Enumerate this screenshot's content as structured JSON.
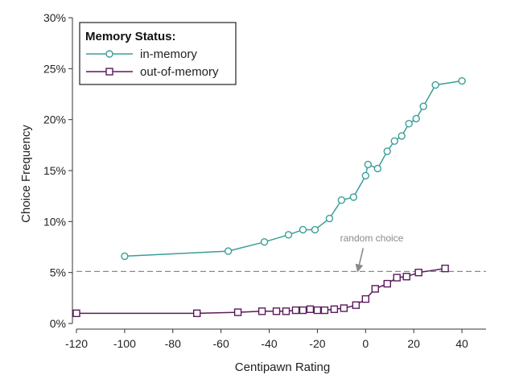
{
  "chart_data": {
    "type": "line",
    "title": "",
    "xlabel": "Centipawn Rating",
    "ylabel": "Choice Frequency",
    "xlim": [
      -120,
      50
    ],
    "ylim": [
      0,
      30
    ],
    "x_ticks": [
      -120,
      -100,
      -80,
      -60,
      -40,
      -20,
      0,
      20,
      40
    ],
    "x_tick_labels": [
      "-120",
      "-100",
      "-80",
      "-60",
      "-40",
      "-20",
      "0",
      "20",
      "40"
    ],
    "y_ticks": [
      0,
      5,
      10,
      15,
      20,
      25,
      30
    ],
    "y_tick_labels": [
      "0%",
      "5%",
      "10%",
      "15%",
      "20%",
      "25%",
      "30%"
    ],
    "grid": false,
    "legend": {
      "title": "Memory Status:",
      "placement": "top-left"
    },
    "series": [
      {
        "name": "in-memory",
        "color": "#3a9e98",
        "marker": "circle",
        "x": [
          -100,
          -57,
          -42,
          -32,
          -26,
          -21,
          -15,
          -10,
          -5,
          0,
          1,
          5,
          9,
          12,
          15,
          18,
          21,
          24,
          29,
          40
        ],
        "y": [
          6.6,
          7.1,
          8.0,
          8.7,
          9.2,
          9.2,
          10.3,
          12.1,
          12.4,
          14.5,
          15.6,
          15.2,
          16.9,
          17.9,
          18.4,
          19.6,
          20.1,
          21.3,
          23.4,
          23.8
        ]
      },
      {
        "name": "out-of-memory",
        "color": "#5a1a5a",
        "marker": "square",
        "x": [
          -120,
          -70,
          -53,
          -43,
          -37,
          -33,
          -29,
          -26,
          -23,
          -20,
          -17,
          -13,
          -9,
          -4,
          0,
          4,
          9,
          13,
          17,
          22,
          33
        ],
        "y": [
          1.0,
          1.0,
          1.1,
          1.2,
          1.2,
          1.2,
          1.3,
          1.3,
          1.4,
          1.3,
          1.3,
          1.4,
          1.5,
          1.8,
          2.4,
          3.4,
          3.9,
          4.5,
          4.6,
          5.0,
          5.4
        ]
      }
    ],
    "reference_line": {
      "y": 5.1,
      "label": "random choice",
      "color": "#8a8a8a",
      "style": "dashed"
    },
    "annotation_arrow": {
      "x": -3,
      "y_from": 7.4,
      "y_to": 5.4
    }
  }
}
